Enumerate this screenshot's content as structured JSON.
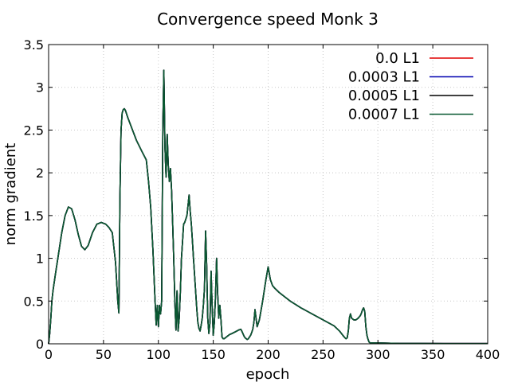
{
  "chart_data": {
    "type": "line",
    "title": "Convergence speed Monk 3",
    "xlabel": "epoch",
    "ylabel": "norm gradient",
    "xlim": [
      0,
      400
    ],
    "ylim": [
      0,
      3.5
    ],
    "xticks": [
      0,
      50,
      100,
      150,
      200,
      250,
      300,
      350,
      400
    ],
    "xtick_labels": [
      "0",
      "50",
      "100",
      "150",
      "200",
      "250",
      "300",
      "350",
      "400"
    ],
    "yticks": [
      0,
      0.5,
      1,
      1.5,
      2,
      2.5,
      3,
      3.5
    ],
    "ytick_labels": [
      "0",
      "0.5",
      "1",
      "1.5",
      "2",
      "2.5",
      "3",
      "3.5"
    ],
    "grid": true,
    "legend_position": "top-right",
    "series": [
      {
        "name": "0.0 L1",
        "color": "#e00000"
      },
      {
        "name": "0.0003 L1",
        "color": "#0000b0"
      },
      {
        "name": "0.0005 L1",
        "color": "#000000"
      },
      {
        "name": "0.0007 L1",
        "color": "#0a5a32"
      }
    ],
    "curve": {
      "x": [
        0,
        1,
        2,
        3,
        4,
        6,
        9,
        12,
        15,
        18,
        21,
        24,
        27,
        30,
        33,
        36,
        40,
        44,
        48,
        52,
        55,
        58,
        61,
        63,
        64,
        65,
        66,
        67,
        68,
        69,
        70,
        72,
        75,
        80,
        85,
        89,
        91,
        93,
        95,
        97,
        98,
        99,
        100,
        101,
        102,
        103,
        104,
        105,
        106,
        107,
        108,
        109,
        110,
        111,
        112,
        113,
        114,
        115,
        116,
        117,
        118,
        119,
        120,
        121,
        122,
        123,
        124,
        126,
        128,
        129,
        130,
        131,
        132,
        133,
        134,
        135,
        136,
        137,
        138,
        139,
        140,
        141,
        142,
        143,
        144,
        145,
        146,
        147,
        148,
        149,
        150,
        151,
        152,
        153,
        154,
        155,
        156,
        157,
        158,
        159,
        160,
        161,
        162,
        163,
        164,
        165,
        167,
        170,
        173,
        175,
        176,
        177,
        178,
        179,
        180,
        181,
        182,
        183,
        184,
        185,
        186,
        187,
        188,
        189,
        190,
        192,
        195,
        198,
        200,
        202,
        204,
        206,
        210,
        215,
        220,
        230,
        240,
        250,
        260,
        265,
        268,
        270,
        271,
        272,
        273,
        274,
        275,
        276,
        278,
        280,
        282,
        284,
        285,
        286,
        287,
        288,
        289,
        290,
        291,
        292,
        293,
        294,
        295,
        300,
        320,
        340,
        360,
        380,
        400
      ],
      "y": [
        0,
        0.12,
        0.3,
        0.5,
        0.62,
        0.8,
        1.05,
        1.3,
        1.5,
        1.6,
        1.58,
        1.45,
        1.28,
        1.14,
        1.1,
        1.15,
        1.3,
        1.4,
        1.42,
        1.4,
        1.36,
        1.3,
        0.95,
        0.5,
        0.36,
        1.7,
        2.5,
        2.7,
        2.74,
        2.75,
        2.73,
        2.65,
        2.55,
        2.38,
        2.25,
        2.15,
        1.9,
        1.6,
        1.1,
        0.5,
        0.22,
        0.45,
        0.2,
        0.45,
        0.35,
        0.5,
        2.5,
        3.2,
        2.3,
        1.95,
        2.45,
        2.1,
        1.9,
        2.05,
        1.8,
        1.4,
        1.0,
        0.5,
        0.16,
        0.62,
        0.15,
        0.3,
        0.6,
        1.0,
        1.2,
        1.4,
        1.42,
        1.5,
        1.74,
        1.55,
        1.4,
        1.2,
        1.0,
        0.8,
        0.6,
        0.4,
        0.25,
        0.18,
        0.15,
        0.22,
        0.3,
        0.45,
        0.65,
        1.32,
        0.9,
        0.3,
        0.12,
        0.25,
        0.85,
        0.45,
        0.1,
        0.25,
        0.55,
        1.0,
        0.6,
        0.3,
        0.45,
        0.28,
        0.08,
        0.06,
        0.06,
        0.07,
        0.08,
        0.09,
        0.1,
        0.11,
        0.12,
        0.14,
        0.16,
        0.17,
        0.15,
        0.12,
        0.09,
        0.07,
        0.06,
        0.05,
        0.06,
        0.08,
        0.1,
        0.13,
        0.17,
        0.25,
        0.4,
        0.3,
        0.2,
        0.28,
        0.5,
        0.75,
        0.9,
        0.75,
        0.68,
        0.65,
        0.6,
        0.55,
        0.5,
        0.42,
        0.35,
        0.28,
        0.21,
        0.15,
        0.1,
        0.07,
        0.06,
        0.07,
        0.15,
        0.3,
        0.35,
        0.3,
        0.28,
        0.28,
        0.3,
        0.33,
        0.36,
        0.4,
        0.42,
        0.38,
        0.2,
        0.1,
        0.05,
        0.02,
        0.01,
        0.01,
        0.01,
        0.01,
        0.005,
        0.004,
        0.003,
        0.003,
        0.003
      ]
    }
  }
}
